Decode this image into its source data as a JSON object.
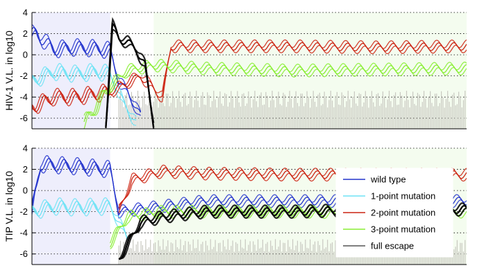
{
  "chart_data": [
    {
      "type": "line",
      "ylabel": "HIV-1 V.L. in log10",
      "ylim": [
        -7,
        4
      ],
      "yticks": [
        4,
        2,
        0,
        -2,
        -4,
        -6
      ],
      "grid": "dotted horizontal",
      "shaded_regions": [
        {
          "x": [
            0,
            0.18
          ],
          "color": "#eeeefc"
        },
        {
          "x": [
            0.28,
            1.0
          ],
          "color": "#f4fcef"
        }
      ],
      "series": [
        {
          "name": "wild type",
          "color": "#2233cc",
          "x": [
            0,
            0.01,
            0.05,
            0.1,
            0.15,
            0.18,
            0.2,
            0.22,
            0.25
          ],
          "y": [
            2.0,
            2.0,
            0.5,
            0.7,
            0.6,
            0.4,
            -2.5,
            -3.5,
            -5.8
          ]
        },
        {
          "name": "1-point mutation",
          "color": "#6fe3f5",
          "x": [
            0,
            0.05,
            0.1,
            0.15,
            0.18,
            0.21,
            0.24
          ],
          "y": [
            -2.5,
            -1.6,
            -1.8,
            -1.6,
            -1.8,
            -4.5,
            -6.5
          ]
        },
        {
          "name": "2-point mutation",
          "color": "#cc2211",
          "x": [
            0,
            0.05,
            0.1,
            0.18,
            0.25,
            0.3,
            0.32,
            0.4,
            0.6,
            0.8,
            1.0
          ],
          "y": [
            -5.0,
            -4.0,
            -4.0,
            -3.5,
            -2.0,
            -4.0,
            0.8,
            0.8,
            0.8,
            0.7,
            0.8
          ]
        },
        {
          "name": "3-point mutation",
          "color": "#88ee33",
          "x": [
            0.12,
            0.18,
            0.22,
            0.28,
            0.4,
            0.6,
            0.8,
            1.0
          ],
          "y": [
            -6.5,
            -3.0,
            -1.5,
            -1.0,
            -1.3,
            -1.5,
            -1.4,
            -1.3
          ]
        },
        {
          "name": "full escape",
          "color": "#000000",
          "x": [
            0.17,
            0.185,
            0.2,
            0.22,
            0.24,
            0.26,
            0.28
          ],
          "y": [
            -6.5,
            2.8,
            1.5,
            1.2,
            0.5,
            -1.0,
            -6.5
          ]
        }
      ]
    },
    {
      "type": "line",
      "ylabel": "TIP V.L. in log10",
      "ylim": [
        -7,
        4
      ],
      "yticks": [
        4,
        2,
        0,
        -2,
        -4,
        -6
      ],
      "grid": "dotted horizontal",
      "shaded_regions": [
        {
          "x": [
            0,
            0.18
          ],
          "color": "#eeeefc"
        },
        {
          "x": [
            0.28,
            1.0
          ],
          "color": "#f4fcef"
        }
      ],
      "series": [
        {
          "name": "wild type",
          "color": "#2233cc",
          "x": [
            0,
            0.02,
            0.1,
            0.18,
            0.2,
            0.3,
            0.4,
            0.6,
            0.8,
            1.0
          ],
          "y": [
            -2.0,
            2.5,
            2.3,
            2.0,
            -2.0,
            -1.5,
            -1.0,
            -1.0,
            -1.0,
            -1.0
          ]
        },
        {
          "name": "1-point mutation",
          "color": "#6fe3f5",
          "x": [
            0,
            0.05,
            0.1,
            0.18,
            0.22
          ],
          "y": [
            -2.0,
            -1.5,
            -1.6,
            -1.5,
            -4.5
          ]
        },
        {
          "name": "2-point mutation",
          "color": "#cc2211",
          "x": [
            0.2,
            0.23,
            0.3,
            0.4,
            0.6,
            0.8,
            1.0
          ],
          "y": [
            -2.0,
            1.0,
            1.8,
            1.6,
            1.5,
            1.5,
            1.5
          ]
        },
        {
          "name": "3-point mutation",
          "color": "#88ee33",
          "x": [
            0.18,
            0.22,
            0.3,
            0.4,
            0.6,
            0.8,
            1.0
          ],
          "y": [
            -5.0,
            -2.5,
            -2.0,
            -2.0,
            -2.0,
            -2.1,
            -2.0
          ]
        },
        {
          "name": "full escape",
          "color": "#000000",
          "x": [
            0.2,
            0.25,
            0.3,
            0.4,
            0.6,
            0.8,
            1.0
          ],
          "y": [
            -6.5,
            -3.0,
            -2.5,
            -2.0,
            -2.0,
            -1.8,
            -1.8
          ]
        }
      ],
      "legend": {
        "placement": "center-right",
        "entries": [
          {
            "label": "wild type",
            "color": "#2233cc"
          },
          {
            "label": "1-point mutation",
            "color": "#6fe3f5"
          },
          {
            "label": "2-point mutation",
            "color": "#cc2211"
          },
          {
            "label": "3-point mutation",
            "color": "#88ee33"
          },
          {
            "label": "full escape",
            "color": "#555555"
          }
        ]
      }
    }
  ]
}
